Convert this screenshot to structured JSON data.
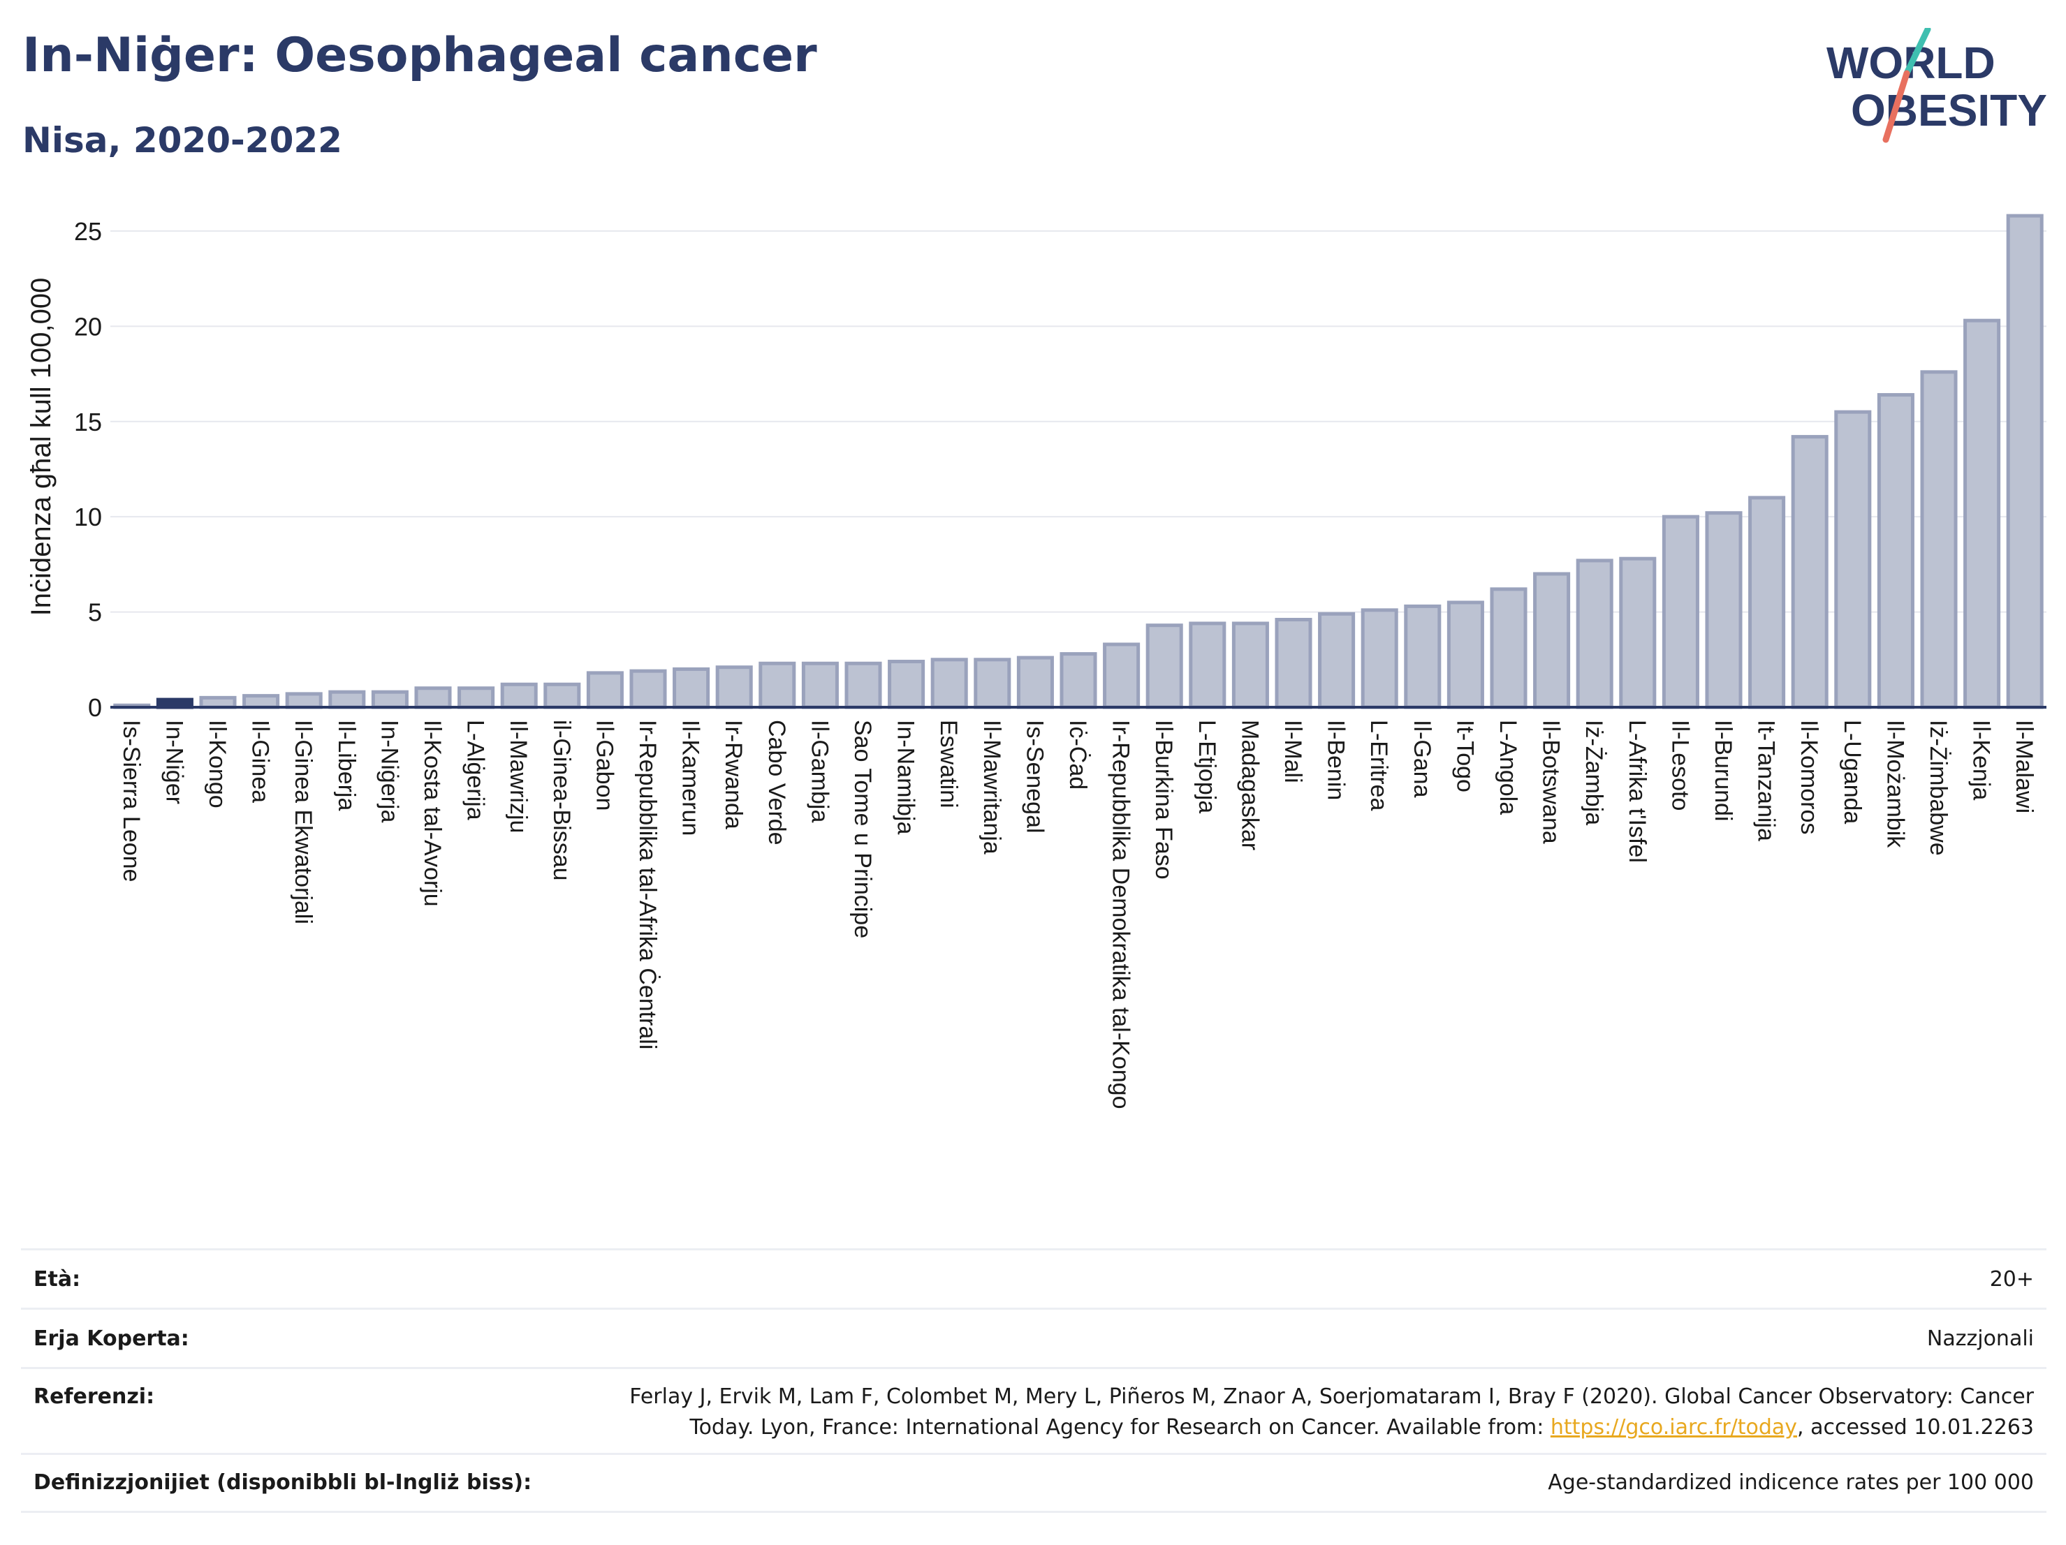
{
  "header": {
    "title": "In-Niġer: Oesophageal cancer",
    "subtitle": "Nisa, 2020-2022"
  },
  "logo": {
    "line1": "WORLD",
    "line2": "OBESITY",
    "colors": {
      "text": "#2b3a67",
      "slash_top": "#3fbfb0",
      "slash_bottom": "#e8705f"
    }
  },
  "colors": {
    "bar_fill": "#bcc2d2",
    "bar_stroke": "#9aa2bc",
    "highlight": "#2b3a67",
    "gridline": "#e6e8ee",
    "axis": "#2b3a67"
  },
  "chart_data": {
    "type": "bar",
    "title": "In-Niġer: Oesophageal cancer",
    "subtitle": "Nisa, 2020-2022",
    "xlabel": "",
    "ylabel": "Inċidenza għal kull 100,000",
    "ylim": [
      0,
      26.5
    ],
    "yticks": [
      0,
      5,
      10,
      15,
      20,
      25
    ],
    "grid": true,
    "highlight_category": "In-Niġer",
    "categories": [
      "Is-Sierra Leone",
      "In-Niġer",
      "Il-Kongo",
      "Il-Ginea",
      "Il-Ginea Ekwatorjali",
      "Il-Liberja",
      "In-Niġerja",
      "Il-Kosta tal-Avorju",
      "L-Alġerija",
      "Il-Mawrizju",
      "il-Ginea-Bissau",
      "Il-Gabon",
      "Ir-Repubblika tal-Afrika Ċentrali",
      "Il-Kamerun",
      "Ir-Rwanda",
      "Cabo Verde",
      "Il-Gambja",
      "Sao Tome u Principe",
      "In-Namibja",
      "Eswatini",
      "Il-Mawritanja",
      "Is-Senegal",
      "Iċ-Ċad",
      "Ir-Repubblika Demokratika tal-Kongo",
      "Il-Burkina Faso",
      "L-Etjopja",
      "Madagaskar",
      "Il-Mali",
      "Il-Benin",
      "L-Eritrea",
      "Il-Gana",
      "It-Togo",
      "L-Angola",
      "Il-Botswana",
      "Iż-Żambja",
      "L-Afrika t'Isfel",
      "Il-Lesoto",
      "Il-Burundi",
      "It-Tanzanija",
      "Il-Komoros",
      "L-Uganda",
      "Il-Możambik",
      "Iż-Żimbabwe",
      "Il-Kenja",
      "Il-Malawi"
    ],
    "values": [
      0.1,
      0.4,
      0.5,
      0.6,
      0.7,
      0.8,
      0.8,
      1.0,
      1.0,
      1.2,
      1.2,
      1.8,
      1.9,
      2.0,
      2.1,
      2.3,
      2.3,
      2.3,
      2.4,
      2.5,
      2.5,
      2.6,
      2.8,
      3.3,
      4.3,
      4.4,
      4.4,
      4.6,
      4.9,
      5.1,
      5.3,
      5.5,
      6.2,
      7.0,
      7.7,
      7.8,
      10.0,
      10.2,
      11.0,
      14.2,
      15.5,
      16.4,
      17.6,
      20.3,
      25.8
    ]
  },
  "meta": {
    "rows": [
      {
        "label": "Età:",
        "value": "20+"
      },
      {
        "label": "Erja Koperta:",
        "value": "Nazzjonali"
      },
      {
        "label": "Referenzi:",
        "value_line1": "Ferlay J, Ervik M, Lam F, Colombet M, Mery L, Piñeros M, Znaor A, Soerjomataram I, Bray F (2020). Global Cancer Observatory: Cancer",
        "value_line2_prefix": "Today. Lyon, France: International Agency for Research on Cancer. Available from: ",
        "link": "https://gco.iarc.fr/today",
        "value_line2_suffix": ", accessed 10.01.2263"
      },
      {
        "label": "Definizzjonijiet (disponibbli bl-Ingliż biss):",
        "value": "Age-standardized indicence rates per 100 000"
      }
    ]
  }
}
